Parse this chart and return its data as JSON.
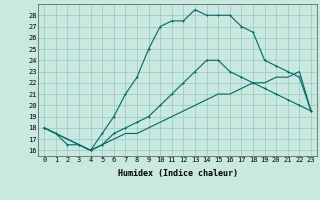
{
  "bg_color": "#c8e8e0",
  "grid_color": "#98c8c0",
  "line_color": "#006868",
  "xlabel": "Humidex (Indice chaleur)",
  "xlim": [
    -0.5,
    23.5
  ],
  "ylim": [
    15.5,
    29.0
  ],
  "xtick_labels": [
    "0",
    "1",
    "2",
    "3",
    "4",
    "5",
    "6",
    "7",
    "8",
    "9",
    "10",
    "11",
    "12",
    "13",
    "14",
    "15",
    "16",
    "17",
    "18",
    "19",
    "20",
    "21",
    "22",
    "23"
  ],
  "ytick_values": [
    16,
    17,
    18,
    19,
    20,
    21,
    22,
    23,
    24,
    25,
    26,
    27,
    28
  ],
  "curve1_x": [
    0,
    1,
    2,
    3,
    4,
    5,
    6,
    7,
    8,
    9,
    10,
    11,
    12,
    13,
    14,
    15,
    16,
    17,
    18,
    19,
    20,
    21,
    22,
    23
  ],
  "curve1_y": [
    18.0,
    17.5,
    16.5,
    16.5,
    16.0,
    17.5,
    19.0,
    21.0,
    22.5,
    25.0,
    27.0,
    27.5,
    27.5,
    28.5,
    28.0,
    28.0,
    28.0,
    27.0,
    26.5,
    24.0,
    23.5,
    23.0,
    22.5,
    19.5
  ],
  "curve2_x": [
    0,
    4,
    5,
    6,
    7,
    8,
    9,
    10,
    11,
    12,
    13,
    14,
    15,
    16,
    17,
    18,
    19,
    20,
    21,
    22,
    23
  ],
  "curve2_y": [
    18.0,
    16.0,
    16.5,
    17.5,
    18.0,
    18.5,
    19.0,
    20.0,
    21.0,
    22.0,
    23.0,
    24.0,
    24.0,
    23.0,
    22.5,
    22.0,
    21.5,
    21.0,
    20.5,
    20.0,
    19.5
  ],
  "curve3_x": [
    0,
    4,
    5,
    6,
    7,
    8,
    9,
    10,
    11,
    12,
    13,
    14,
    15,
    16,
    17,
    18,
    19,
    20,
    21,
    22,
    23
  ],
  "curve3_y": [
    18.0,
    16.0,
    16.5,
    17.0,
    17.5,
    17.5,
    18.0,
    18.5,
    19.0,
    19.5,
    20.0,
    20.5,
    21.0,
    21.0,
    21.5,
    22.0,
    22.0,
    22.5,
    22.5,
    23.0,
    19.5
  ]
}
